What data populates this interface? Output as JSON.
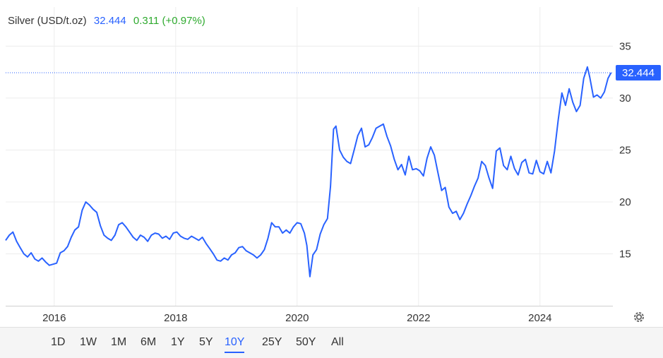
{
  "header": {
    "name": "Silver (USD/t.oz)",
    "last": "32.444",
    "change": "0.311 (+0.97%)"
  },
  "colors": {
    "line": "#2962ff",
    "up": "#2eaa2e",
    "grid": "#ececec",
    "axis_text": "#333333",
    "label_bg": "#2962ff"
  },
  "icons": {
    "settings": "gear-icon"
  },
  "ranges": [
    {
      "label": "1D"
    },
    {
      "label": "1W"
    },
    {
      "label": "1M"
    },
    {
      "label": "6M"
    },
    {
      "label": "1Y"
    },
    {
      "label": "5Y"
    },
    {
      "label": "10Y",
      "active": true
    },
    {
      "label": "25Y"
    },
    {
      "label": "50Y"
    },
    {
      "label": "All"
    }
  ],
  "chart_data": {
    "type": "line",
    "series": [
      {
        "name": "Silver (USD/t.oz)"
      }
    ],
    "x_ticks": [
      "2016",
      "2018",
      "2020",
      "2022",
      "2024"
    ],
    "y_ticks": [
      "15",
      "20",
      "25",
      "30",
      "35"
    ],
    "ylim": [
      10,
      37
    ],
    "xlim": [
      2015.2,
      2025.2
    ],
    "grid": true,
    "last_value_label": "32.444",
    "x": [
      2015.2,
      2015.26,
      2015.32,
      2015.38,
      2015.44,
      2015.5,
      2015.56,
      2015.62,
      2015.68,
      2015.74,
      2015.8,
      2015.86,
      2015.92,
      2015.98,
      2016.04,
      2016.1,
      2016.16,
      2016.22,
      2016.28,
      2016.34,
      2016.4,
      2016.46,
      2016.52,
      2016.58,
      2016.64,
      2016.7,
      2016.76,
      2016.82,
      2016.88,
      2016.94,
      2017.0,
      2017.06,
      2017.12,
      2017.18,
      2017.24,
      2017.3,
      2017.36,
      2017.42,
      2017.48,
      2017.54,
      2017.6,
      2017.66,
      2017.72,
      2017.78,
      2017.84,
      2017.9,
      2017.96,
      2018.02,
      2018.08,
      2018.14,
      2018.2,
      2018.26,
      2018.32,
      2018.38,
      2018.44,
      2018.5,
      2018.56,
      2018.62,
      2018.68,
      2018.74,
      2018.8,
      2018.86,
      2018.92,
      2018.98,
      2019.04,
      2019.1,
      2019.16,
      2019.22,
      2019.28,
      2019.34,
      2019.4,
      2019.46,
      2019.52,
      2019.58,
      2019.64,
      2019.7,
      2019.76,
      2019.82,
      2019.88,
      2019.94,
      2020.0,
      2020.06,
      2020.12,
      2020.16,
      2020.21,
      2020.26,
      2020.32,
      2020.38,
      2020.44,
      2020.5,
      2020.55,
      2020.6,
      2020.64,
      2020.7,
      2020.76,
      2020.82,
      2020.88,
      2020.94,
      2021.0,
      2021.06,
      2021.12,
      2021.18,
      2021.24,
      2021.3,
      2021.36,
      2021.42,
      2021.48,
      2021.54,
      2021.6,
      2021.66,
      2021.72,
      2021.78,
      2021.84,
      2021.9,
      2021.96,
      2022.02,
      2022.08,
      2022.14,
      2022.2,
      2022.26,
      2022.32,
      2022.38,
      2022.44,
      2022.5,
      2022.56,
      2022.62,
      2022.68,
      2022.74,
      2022.8,
      2022.86,
      2022.92,
      2022.98,
      2023.04,
      2023.1,
      2023.16,
      2023.22,
      2023.28,
      2023.34,
      2023.4,
      2023.46,
      2023.52,
      2023.58,
      2023.64,
      2023.7,
      2023.76,
      2023.82,
      2023.88,
      2023.94,
      2024.0,
      2024.06,
      2024.12,
      2024.18,
      2024.24,
      2024.3,
      2024.36,
      2024.42,
      2024.48,
      2024.54,
      2024.6,
      2024.66,
      2024.72,
      2024.78,
      2024.82,
      2024.88,
      2024.94,
      2025.0,
      2025.06,
      2025.12,
      2025.17
    ],
    "y": [
      16.3,
      16.8,
      17.1,
      16.2,
      15.6,
      15.0,
      14.7,
      15.1,
      14.5,
      14.3,
      14.6,
      14.2,
      13.9,
      14.0,
      14.1,
      15.1,
      15.3,
      15.7,
      16.6,
      17.3,
      17.6,
      19.2,
      20.0,
      19.7,
      19.3,
      19.0,
      17.7,
      16.8,
      16.5,
      16.3,
      16.8,
      17.8,
      18.0,
      17.6,
      17.1,
      16.6,
      16.3,
      16.8,
      16.6,
      16.2,
      16.8,
      17.0,
      16.9,
      16.5,
      16.7,
      16.4,
      17.0,
      17.1,
      16.7,
      16.5,
      16.4,
      16.7,
      16.5,
      16.3,
      16.6,
      16.0,
      15.5,
      15.0,
      14.4,
      14.3,
      14.6,
      14.4,
      14.9,
      15.1,
      15.6,
      15.7,
      15.3,
      15.1,
      14.9,
      14.6,
      14.9,
      15.4,
      16.5,
      18.0,
      17.6,
      17.6,
      17.0,
      17.3,
      17.0,
      17.6,
      18.0,
      17.9,
      17.0,
      15.8,
      12.8,
      14.9,
      15.4,
      16.9,
      17.8,
      18.4,
      21.5,
      27.0,
      27.3,
      25.0,
      24.3,
      23.9,
      23.7,
      25.0,
      26.4,
      27.1,
      25.3,
      25.5,
      26.2,
      27.1,
      27.3,
      27.5,
      26.3,
      25.4,
      24.1,
      23.1,
      23.6,
      22.6,
      24.4,
      23.1,
      23.2,
      23.0,
      22.5,
      24.2,
      25.3,
      24.5,
      22.8,
      21.1,
      21.4,
      19.5,
      18.9,
      19.1,
      18.3,
      18.9,
      19.8,
      20.6,
      21.5,
      22.3,
      23.9,
      23.5,
      22.3,
      21.3,
      24.9,
      25.2,
      23.5,
      23.1,
      24.4,
      23.2,
      22.6,
      23.8,
      24.1,
      22.8,
      22.7,
      24.0,
      22.9,
      22.7,
      23.9,
      22.8,
      24.9,
      27.9,
      30.5,
      29.3,
      30.9,
      29.6,
      28.7,
      29.3,
      31.9,
      33.0,
      32.0,
      30.1,
      30.3,
      30.0,
      30.6,
      31.9,
      32.444
    ]
  }
}
